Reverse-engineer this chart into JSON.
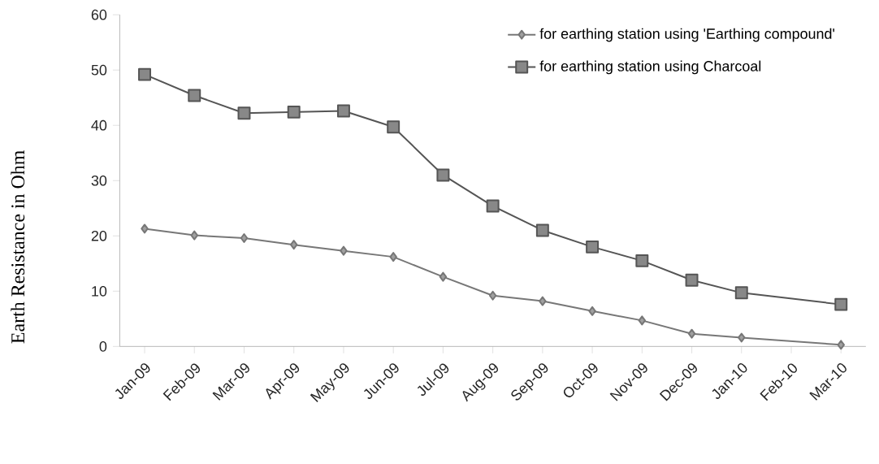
{
  "chart_data": {
    "type": "line",
    "ylabel": "Earth Resistance in Ohm",
    "categories": [
      "Jan-09",
      "Feb-09",
      "Mar-09",
      "Apr-09",
      "May-09",
      "Jun-09",
      "Jul-09",
      "Aug-09",
      "Sep-09",
      "Oct-09",
      "Nov-09",
      "Dec-09",
      "Jan-10",
      "Feb-10",
      "Mar-10"
    ],
    "series": [
      {
        "name": "for earthing station using 'Earthing compound'",
        "color": "#777777",
        "marker": "diamond",
        "values": [
          21.3,
          20.1,
          19.6,
          18.4,
          17.3,
          16.2,
          12.6,
          9.2,
          8.2,
          6.4,
          4.7,
          2.3,
          1.6,
          null,
          0.3
        ]
      },
      {
        "name": "for earthing station using Charcoal",
        "color": "#555555",
        "marker": "square",
        "values": [
          49.2,
          45.4,
          42.2,
          42.4,
          42.6,
          39.7,
          31,
          25.4,
          21,
          18,
          15.5,
          12,
          9.7,
          null,
          7.6
        ]
      }
    ],
    "ylim": [
      0,
      60
    ],
    "yticks": [
      0,
      10,
      20,
      30,
      40,
      50,
      60
    ],
    "grid": false,
    "legend": "top right",
    "line_style": "solid"
  }
}
